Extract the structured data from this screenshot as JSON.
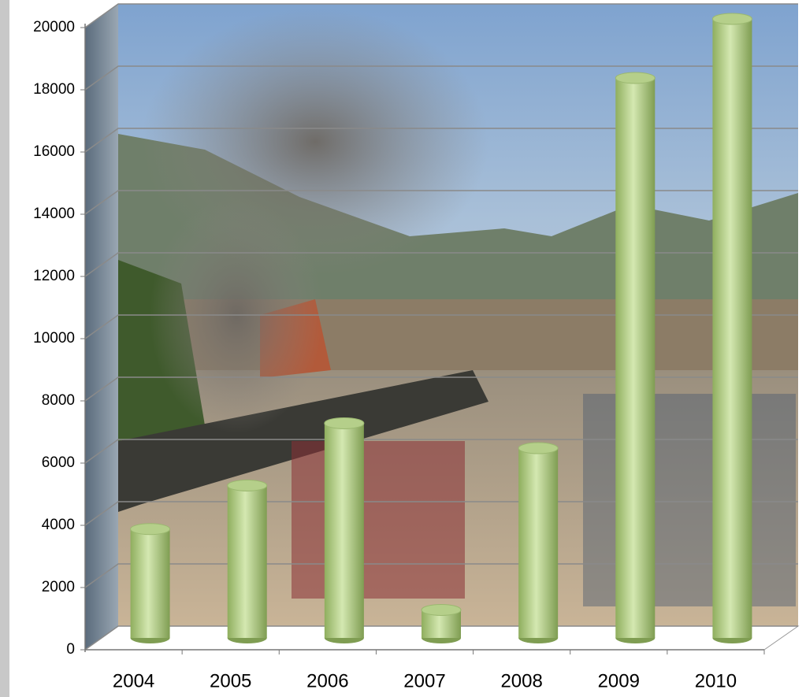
{
  "chart_data": {
    "type": "bar",
    "categories": [
      "2004",
      "2005",
      "2006",
      "2007",
      "2008",
      "2009",
      "2010"
    ],
    "values": [
      3500,
      4900,
      6900,
      900,
      6100,
      18000,
      19900
    ],
    "color": "#b5cf8a",
    "ylim": [
      0,
      20000
    ],
    "yticks": [
      0,
      2000,
      4000,
      6000,
      8000,
      10000,
      12000,
      14000,
      16000,
      18000,
      20000
    ],
    "grid": true
  }
}
